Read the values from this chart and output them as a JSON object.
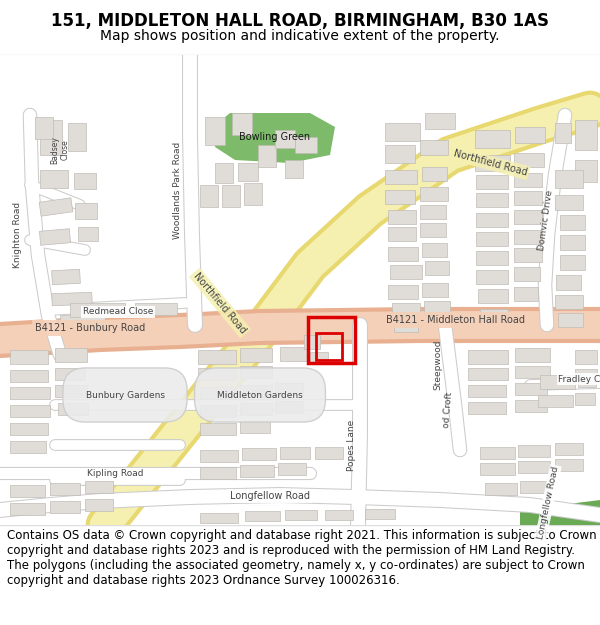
{
  "title": "151, MIDDLETON HALL ROAD, BIRMINGHAM, B30 1AS",
  "subtitle": "Map shows position and indicative extent of the property.",
  "footer": "Contains OS data © Crown copyright and database right 2021. This information is subject to Crown copyright and database rights 2023 and is reproduced with the permission of HM Land Registry. The polygons (including the associated geometry, namely x, y co-ordinates) are subject to Crown copyright and database rights 2023 Ordnance Survey 100026316.",
  "title_fontsize": 12,
  "subtitle_fontsize": 10,
  "footer_fontsize": 8.5,
  "map_bg": "#ffffff",
  "road_yellow_outer": "#e8d870",
  "road_yellow_inner": "#f5f0b0",
  "road_salmon_outer": "#e8b090",
  "road_salmon_inner": "#f5d0b8",
  "road_white": "#ffffff",
  "road_outline": "#cccccc",
  "building_fill": "#e0dcd8",
  "building_edge": "#c0bbb5",
  "green_area": "#7dba6a",
  "green_dark": "#5a9e50",
  "highlight_color": "#dd0000",
  "header_bg": "#ffffff",
  "footer_bg": "#ffffff",
  "separator": "#dddddd",
  "text_dark": "#444444",
  "road_label_bg": "none"
}
